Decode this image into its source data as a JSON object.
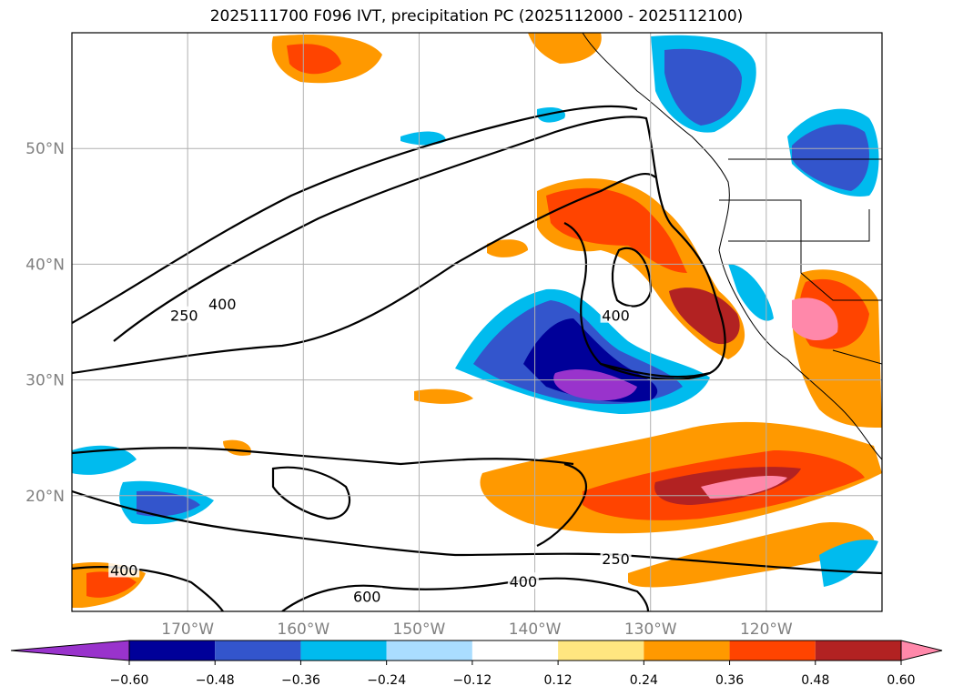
{
  "title": "2025111700 F096 IVT, precipitation PC (2025112000 - 2025112100)",
  "map": {
    "lon_range": [
      -180,
      -110
    ],
    "lat_range": [
      10,
      60
    ],
    "lon_ticks": [
      {
        "value": -170,
        "label": "170°W"
      },
      {
        "value": -160,
        "label": "160°W"
      },
      {
        "value": -150,
        "label": "150°W"
      },
      {
        "value": -140,
        "label": "140°W"
      },
      {
        "value": -130,
        "label": "130°W"
      },
      {
        "value": -120,
        "label": "120°W"
      }
    ],
    "lat_ticks": [
      {
        "value": 20,
        "label": "20°N"
      },
      {
        "value": 30,
        "label": "30°N"
      },
      {
        "value": 40,
        "label": "40°N"
      },
      {
        "value": 50,
        "label": "50°N"
      }
    ],
    "grid": true,
    "contour_labels": [
      {
        "text": "250",
        "lon": -170.3,
        "lat": 35.5
      },
      {
        "text": "400",
        "lon": -167.0,
        "lat": 36.5
      },
      {
        "text": "400",
        "lon": -133.0,
        "lat": 35.5
      },
      {
        "text": "250",
        "lon": -133.0,
        "lat": 14.5
      },
      {
        "text": "400",
        "lon": -141.0,
        "lat": 12.5
      },
      {
        "text": "400",
        "lon": -175.5,
        "lat": 13.5
      },
      {
        "text": "600",
        "lon": -154.5,
        "lat": 11.2
      }
    ]
  },
  "colorbar": {
    "levels": [
      "-0.60",
      "-0.48",
      "-0.36",
      "-0.24",
      "-0.12",
      "0.12",
      "0.24",
      "0.36",
      "0.48",
      "0.60"
    ],
    "colors": [
      "#9933cc",
      "#000099",
      "#3355cc",
      "#00bbee",
      "#aaddff",
      "#ffffff",
      "#ffe680",
      "#ff9900",
      "#ff4400",
      "#b22222",
      "#ff88aa"
    ]
  }
}
